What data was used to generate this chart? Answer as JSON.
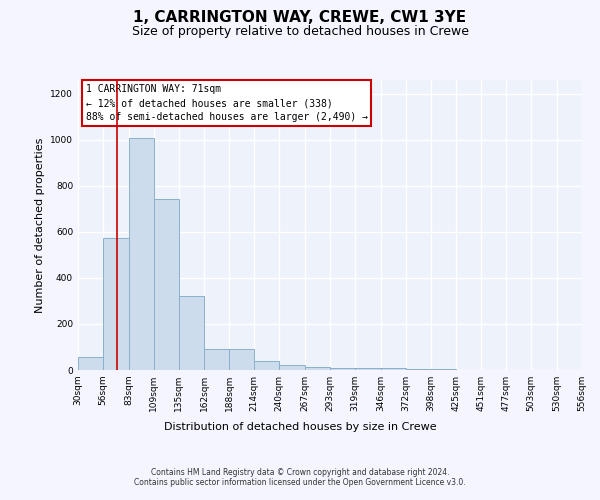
{
  "title": "1, CARRINGTON WAY, CREWE, CW1 3YE",
  "subtitle": "Size of property relative to detached houses in Crewe",
  "xlabel": "Distribution of detached houses by size in Crewe",
  "ylabel": "Number of detached properties",
  "bar_color": "#ccdcec",
  "bar_edge_color": "#8ab0cc",
  "background_color": "#eef2fb",
  "grid_color": "#ffffff",
  "bin_edges": [
    30,
    56,
    83,
    109,
    135,
    162,
    188,
    214,
    240,
    267,
    293,
    319,
    346,
    372,
    398,
    425,
    451,
    477,
    503,
    530,
    556
  ],
  "bar_heights": [
    57,
    575,
    1010,
    745,
    320,
    90,
    90,
    40,
    22,
    15,
    10,
    10,
    10,
    5,
    3,
    2,
    2,
    2,
    2,
    2
  ],
  "tick_labels": [
    "30sqm",
    "56sqm",
    "83sqm",
    "109sqm",
    "135sqm",
    "162sqm",
    "188sqm",
    "214sqm",
    "240sqm",
    "267sqm",
    "293sqm",
    "319sqm",
    "346sqm",
    "372sqm",
    "398sqm",
    "425sqm",
    "451sqm",
    "477sqm",
    "503sqm",
    "530sqm",
    "556sqm"
  ],
  "property_size": 71,
  "red_line_color": "#cc0000",
  "annotation_text": "1 CARRINGTON WAY: 71sqm\n← 12% of detached houses are smaller (338)\n88% of semi-detached houses are larger (2,490) →",
  "annotation_box_color": "#ffffff",
  "annotation_box_edge": "#cc0000",
  "ylim": [
    0,
    1260
  ],
  "yticks": [
    0,
    200,
    400,
    600,
    800,
    1000,
    1200
  ],
  "footer_text": "Contains HM Land Registry data © Crown copyright and database right 2024.\nContains public sector information licensed under the Open Government Licence v3.0.",
  "title_fontsize": 11,
  "subtitle_fontsize": 9,
  "xlabel_fontsize": 8,
  "ylabel_fontsize": 8,
  "tick_fontsize": 6.5,
  "annotation_fontsize": 7,
  "footer_fontsize": 5.5
}
